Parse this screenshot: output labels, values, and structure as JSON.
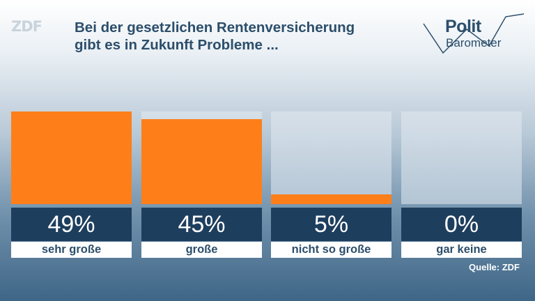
{
  "logo": "ZDF",
  "title_lines": [
    "Bei der gesetzlichen Rentenversicherung",
    "gibt es in Zukunft Probleme ..."
  ],
  "brand": {
    "line1": "Polit",
    "line2": "Barometer"
  },
  "colors": {
    "bar": "#fe7f1a",
    "valuebox": "#1e3e5e",
    "text": "#2c4e6b"
  },
  "chart_data": {
    "type": "bar",
    "title": "Bei der gesetzlichen Rentenversicherung gibt es in Zukunft Probleme ...",
    "categories": [
      "sehr große",
      "große",
      "nicht so große",
      "gar keine"
    ],
    "values": [
      49,
      45,
      5,
      0
    ],
    "value_labels": [
      "49%",
      "45%",
      "5%",
      "0%"
    ],
    "ylim": [
      0,
      49
    ],
    "grid": false
  },
  "source": "Quelle: ZDF"
}
